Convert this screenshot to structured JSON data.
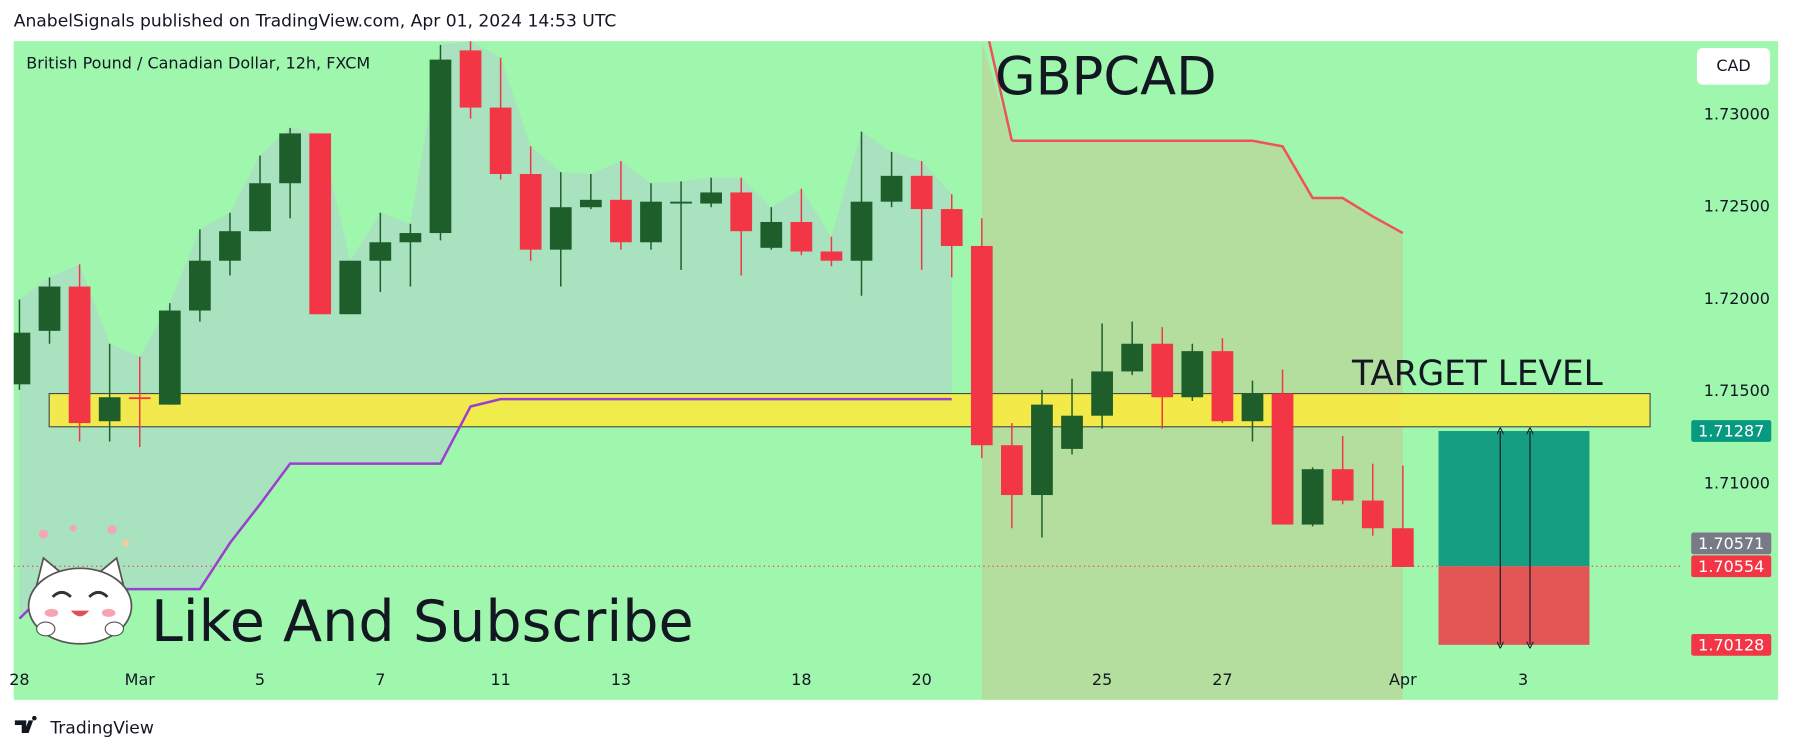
{
  "header": "AnabelSignals published on TradingView.com, Apr 01, 2024 14:53 UTC",
  "footer": "TradingView",
  "chart_data": {
    "type": "candlestick",
    "title": "GBPCAD",
    "subtitle": "British Pound / Canadian Dollar, 12h, FXCM",
    "currency": "CAD",
    "annotation": "Like And Subscribe",
    "categories": [
      "28",
      null,
      null,
      null,
      "Mar",
      null,
      null,
      null,
      "5",
      null,
      null,
      null,
      "7",
      null,
      null,
      null,
      "11",
      null,
      null,
      null,
      "13",
      null,
      null,
      null,
      null,
      null,
      "18",
      null,
      null,
      null,
      "20",
      null,
      null,
      null,
      null,
      null,
      "25",
      null,
      null,
      null,
      "27",
      null,
      null,
      null,
      null,
      null,
      "Apr",
      null,
      null,
      null,
      "3",
      null,
      null,
      null,
      null,
      null
    ],
    "open": [
      1.7154,
      1.7183,
      1.7207,
      1.7134,
      1.7147,
      1.7143,
      1.7194,
      1.7221,
      1.7237,
      1.7263,
      1.729,
      1.7192,
      1.7221,
      1.7231,
      1.7236,
      1.7335,
      1.7304,
      1.7268,
      1.7227,
      1.725,
      1.7254,
      1.7231,
      1.7252,
      1.7252,
      1.7258,
      1.7228,
      1.7242,
      1.7226,
      1.7221,
      1.7253,
      1.7267,
      1.7249,
      1.7229,
      1.7121,
      1.7094,
      1.7119,
      1.7137,
      1.7161,
      1.7176,
      1.7147,
      1.7172,
      1.7134,
      1.7149,
      1.7078,
      1.7108,
      1.7091,
      1.7076,
      null,
      null,
      null,
      null,
      null,
      null,
      null,
      null,
      null
    ],
    "high": [
      1.72,
      1.7212,
      1.7219,
      1.7176,
      1.7169,
      1.7198,
      1.7238,
      1.7247,
      1.7278,
      1.7293,
      1.729,
      1.7221,
      1.7247,
      1.7241,
      1.7338,
      1.734,
      1.7331,
      1.7283,
      1.7269,
      1.7268,
      1.7275,
      1.7263,
      1.7264,
      1.7266,
      1.7266,
      1.725,
      1.726,
      1.7234,
      1.7291,
      1.728,
      1.7275,
      1.7257,
      1.7244,
      1.7133,
      1.7151,
      1.7157,
      1.7187,
      1.7188,
      1.7185,
      1.7176,
      1.7179,
      1.7156,
      1.7162,
      1.7109,
      1.7126,
      1.7111,
      1.711,
      null,
      null,
      null,
      null,
      null,
      null,
      null,
      null,
      null
    ],
    "low": [
      1.7151,
      1.7176,
      1.7123,
      1.7123,
      1.712,
      1.7143,
      1.7188,
      1.7213,
      1.7237,
      1.7244,
      1.7192,
      1.7192,
      1.7204,
      1.7207,
      1.7232,
      1.7298,
      1.7265,
      1.7221,
      1.7207,
      1.7249,
      1.7227,
      1.7227,
      1.7216,
      1.725,
      1.7213,
      1.7227,
      1.7224,
      1.7218,
      1.7202,
      1.725,
      1.7216,
      1.7212,
      1.7114,
      1.7076,
      1.7071,
      1.7116,
      1.713,
      1.7159,
      1.713,
      1.7145,
      1.7133,
      1.7123,
      1.7078,
      1.7077,
      1.7089,
      1.7072,
      1.7055,
      null,
      null,
      null,
      null,
      null,
      null,
      null,
      null,
      null
    ],
    "close": [
      1.7182,
      1.7207,
      1.7133,
      1.7147,
      1.7146,
      1.7194,
      1.7221,
      1.7237,
      1.7263,
      1.729,
      1.7192,
      1.7221,
      1.7231,
      1.7236,
      1.733,
      1.7304,
      1.7268,
      1.7227,
      1.725,
      1.7254,
      1.7231,
      1.7253,
      1.7253,
      1.7258,
      1.7237,
      1.7242,
      1.7226,
      1.7221,
      1.7253,
      1.7267,
      1.7249,
      1.7229,
      1.7121,
      1.7094,
      1.7143,
      1.7137,
      1.7161,
      1.7176,
      1.7147,
      1.7172,
      1.7134,
      1.7149,
      1.7078,
      1.7108,
      1.7091,
      1.7076,
      1.7055,
      null,
      null,
      null,
      null,
      null,
      null,
      null,
      null,
      null
    ],
    "up_color": "#1d5e2a",
    "down_color": "#f23645",
    "ylim": [
      1.6983,
      1.734
    ],
    "yticks": [
      {
        "value": 1.73,
        "label": "1.73000"
      },
      {
        "value": 1.725,
        "label": "1.72500"
      },
      {
        "value": 1.72,
        "label": "1.72000"
      },
      {
        "value": 1.715,
        "label": "1.71500"
      },
      {
        "value": 1.71,
        "label": "1.71000"
      }
    ],
    "lines": [
      {
        "color": "#9b3fd0",
        "values": [
          1.7027,
          1.7043,
          1.7043,
          1.7043,
          1.7043,
          1.7043,
          1.7043,
          1.7068,
          1.7089,
          1.7111,
          1.7111,
          1.7111,
          1.7111,
          1.7111,
          1.7111,
          1.7142,
          1.7146,
          1.7146,
          1.7146,
          1.7146,
          1.7146,
          1.7146,
          1.7146,
          1.7146,
          1.7146,
          1.7146,
          1.7146,
          1.7146,
          1.7146,
          1.7146,
          1.7146,
          1.7146,
          null,
          null,
          null,
          null,
          null,
          null,
          null,
          null,
          null,
          null,
          null,
          null,
          null,
          null,
          null,
          null,
          null,
          null,
          null,
          null,
          null,
          null,
          null,
          null
        ]
      },
      {
        "color": "#f0525a",
        "values": [
          null,
          null,
          null,
          null,
          null,
          null,
          null,
          null,
          null,
          null,
          null,
          null,
          null,
          null,
          null,
          null,
          null,
          null,
          null,
          null,
          null,
          null,
          null,
          null,
          null,
          null,
          null,
          null,
          null,
          null,
          null,
          null,
          null,
          1.7286,
          1.7286,
          1.7286,
          1.7286,
          1.7286,
          1.7286,
          1.7286,
          1.7286,
          1.7286,
          1.7283,
          1.7255,
          1.7255,
          1.7245,
          1.7236,
          null,
          null,
          null,
          null,
          null,
          null,
          null,
          null,
          null
        ]
      }
    ],
    "zone": {
      "label": "TARGET LEVEL",
      "range": [
        1.7131,
        1.7149
      ],
      "color": "#ffeb3b"
    },
    "position": {
      "target": 1.71287,
      "entry": 1.70554,
      "stop": 1.70128,
      "profit_color": "#169e82",
      "loss_color": "#e35656"
    },
    "price_tags": [
      {
        "value": 1.71287,
        "color": "#089981"
      },
      {
        "value": 1.70571,
        "color": "#787b86"
      },
      {
        "value": 1.70554,
        "color": "#f23645"
      },
      {
        "value": 1.70128,
        "color": "#f23645"
      }
    ]
  }
}
